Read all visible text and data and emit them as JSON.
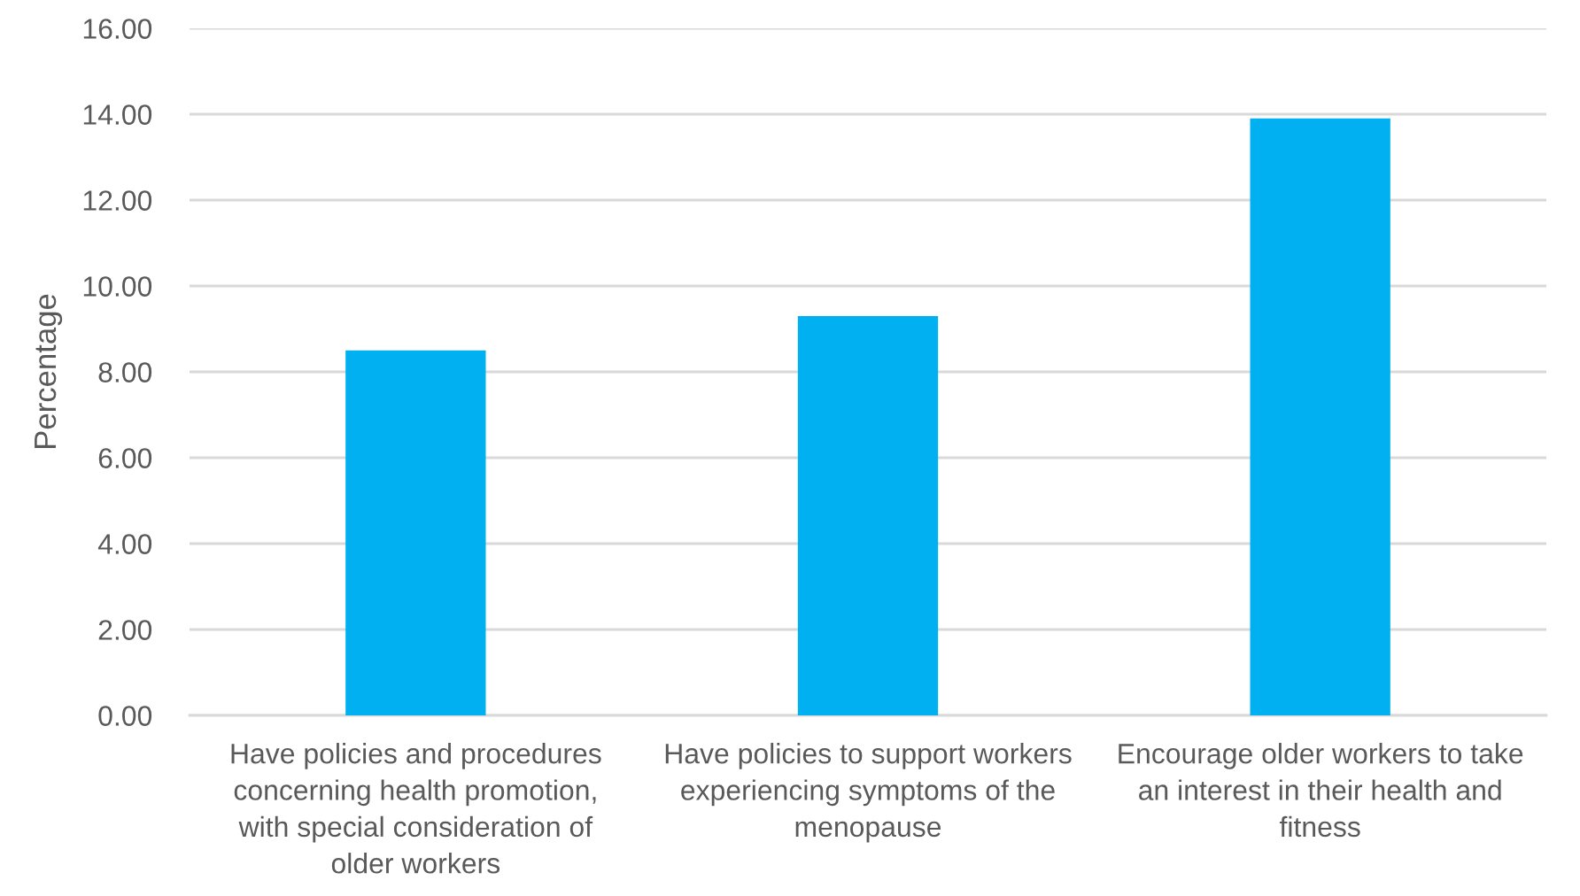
{
  "chart_data": {
    "type": "bar",
    "categories": [
      "Have policies and procedures concerning health promotion, with special consideration of older workers",
      "Have policies to support workers experiencing symptoms of the menopause",
      "Encourage older workers to take an interest in their health and fitness"
    ],
    "values": [
      8.5,
      9.3,
      13.9
    ],
    "color": "#00b0f0",
    "ylabel": "Percentage",
    "ylim": [
      0,
      16
    ],
    "yticks": [
      {
        "value": 0,
        "label": "0.00"
      },
      {
        "value": 2,
        "label": "2.00"
      },
      {
        "value": 4,
        "label": "4.00"
      },
      {
        "value": 6,
        "label": "6.00"
      },
      {
        "value": 8,
        "label": "8.00"
      },
      {
        "value": 10,
        "label": "10.00"
      },
      {
        "value": 12,
        "label": "12.00"
      },
      {
        "value": 14,
        "label": "14.00"
      },
      {
        "value": 16,
        "label": "16.00"
      }
    ],
    "grid": "y",
    "legend": false
  }
}
